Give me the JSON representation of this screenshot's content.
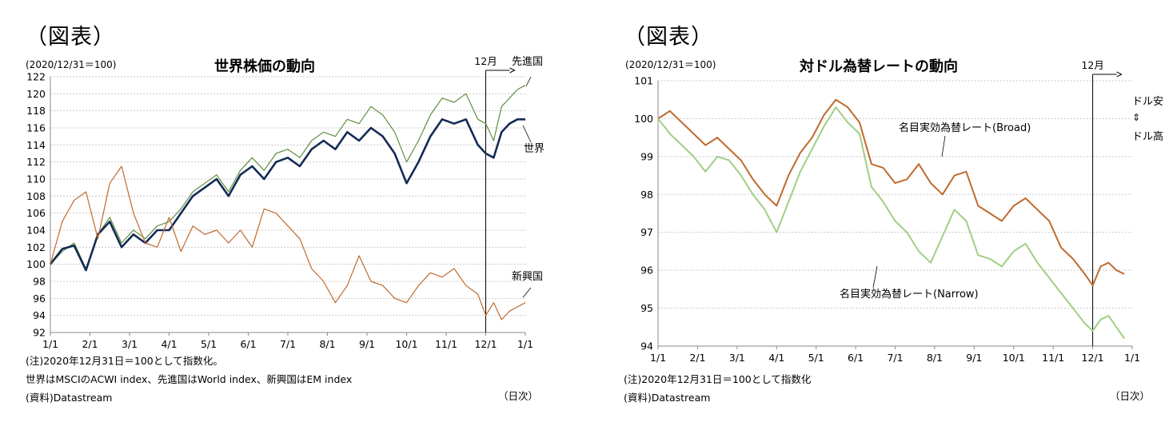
{
  "left": {
    "heading": "（図表）",
    "base_label": "(2020/12/31＝100)",
    "title": "世界株価の動向",
    "unit": "（日次）",
    "notes": [
      "(注)2020年12月31日＝100として指数化。",
      "世界はMSCIのACWI index、先進国はWorld index、新興国はEM index",
      "(資料)Datastream"
    ]
  },
  "right": {
    "heading": "（図表）",
    "base_label": "(2020/12/31＝100)",
    "title": "対ドル為替レートの動向",
    "unit": "（日次）",
    "notes": [
      "(注)2020年12月31日＝100として指数化",
      "(資料)Datastream"
    ]
  },
  "chart_data": [
    {
      "type": "line",
      "title": "世界株価の動向",
      "ylim": [
        92,
        122
      ],
      "yticks": [
        92,
        94,
        96,
        98,
        100,
        102,
        104,
        106,
        108,
        110,
        112,
        114,
        116,
        118,
        120,
        122
      ],
      "xticks": [
        "1/1",
        "2/1",
        "3/1",
        "4/1",
        "5/1",
        "6/1",
        "7/1",
        "8/1",
        "9/1",
        "10/1",
        "11/1",
        "12/1",
        "1/1"
      ],
      "grid": true,
      "marker": {
        "label": "12月",
        "x": 11
      },
      "series": [
        {
          "name": "先進国",
          "color": "#5f8f3e",
          "width": 1.2,
          "x": [
            0,
            0.3,
            0.6,
            0.9,
            1.2,
            1.5,
            1.8,
            2.1,
            2.4,
            2.7,
            3.0,
            3.3,
            3.6,
            3.9,
            4.2,
            4.5,
            4.8,
            5.1,
            5.4,
            5.7,
            6.0,
            6.3,
            6.6,
            6.9,
            7.2,
            7.5,
            7.8,
            8.1,
            8.4,
            8.7,
            9.0,
            9.3,
            9.6,
            9.9,
            10.2,
            10.5,
            10.8,
            11.0,
            11.2,
            11.4,
            11.6,
            11.8,
            12.0
          ],
          "y": [
            100,
            101.5,
            102.5,
            99.5,
            103.5,
            105.5,
            102.5,
            104.0,
            103.0,
            104.5,
            105.0,
            106.5,
            108.5,
            109.5,
            110.5,
            108.5,
            111.0,
            112.5,
            111.0,
            113.0,
            113.5,
            112.5,
            114.5,
            115.5,
            115.0,
            117.0,
            116.5,
            118.5,
            117.5,
            115.5,
            112.0,
            114.5,
            117.5,
            119.5,
            119.0,
            120.0,
            117.0,
            116.5,
            114.5,
            118.5,
            119.5,
            120.5,
            121.0
          ]
        },
        {
          "name": "世界",
          "color": "#142b55",
          "width": 2.6,
          "x": [
            0,
            0.3,
            0.6,
            0.9,
            1.2,
            1.5,
            1.8,
            2.1,
            2.4,
            2.7,
            3.0,
            3.3,
            3.6,
            3.9,
            4.2,
            4.5,
            4.8,
            5.1,
            5.4,
            5.7,
            6.0,
            6.3,
            6.6,
            6.9,
            7.2,
            7.5,
            7.8,
            8.1,
            8.4,
            8.7,
            9.0,
            9.3,
            9.6,
            9.9,
            10.2,
            10.5,
            10.8,
            11.0,
            11.2,
            11.4,
            11.6,
            11.8,
            12.0
          ],
          "y": [
            100,
            101.8,
            102.2,
            99.3,
            103.5,
            105.0,
            102.0,
            103.5,
            102.5,
            104.0,
            104.0,
            106.0,
            108.0,
            109.0,
            110.0,
            108.0,
            110.5,
            111.5,
            110.0,
            112.0,
            112.5,
            111.5,
            113.5,
            114.5,
            113.5,
            115.5,
            114.5,
            116.0,
            115.0,
            113.0,
            109.5,
            112.0,
            115.0,
            117.0,
            116.5,
            117.0,
            114.0,
            113.0,
            112.5,
            115.5,
            116.5,
            117.0,
            117.0
          ]
        },
        {
          "name": "新興国",
          "color": "#c06a2e",
          "width": 1.2,
          "x": [
            0,
            0.3,
            0.6,
            0.9,
            1.2,
            1.5,
            1.8,
            2.1,
            2.4,
            2.7,
            3.0,
            3.3,
            3.6,
            3.9,
            4.2,
            4.5,
            4.8,
            5.1,
            5.4,
            5.7,
            6.0,
            6.3,
            6.6,
            6.9,
            7.2,
            7.5,
            7.8,
            8.1,
            8.4,
            8.7,
            9.0,
            9.3,
            9.6,
            9.9,
            10.2,
            10.5,
            10.8,
            11.0,
            11.2,
            11.4,
            11.6,
            11.8,
            12.0
          ],
          "y": [
            100,
            105.0,
            107.5,
            108.5,
            103.0,
            109.5,
            111.5,
            106.0,
            102.5,
            102.0,
            105.5,
            101.5,
            104.5,
            103.5,
            104.0,
            102.5,
            104.0,
            102.0,
            106.5,
            106.0,
            104.5,
            103.0,
            99.5,
            98.0,
            95.5,
            97.5,
            101.0,
            98.0,
            97.5,
            96.0,
            95.5,
            97.5,
            99.0,
            98.5,
            99.5,
            97.5,
            96.5,
            94.0,
            95.5,
            93.5,
            94.5,
            95.0,
            95.5
          ]
        }
      ],
      "annotations": [
        "先進国",
        "世界",
        "新興国"
      ]
    },
    {
      "type": "line",
      "title": "対ドル為替レートの動向",
      "ylim": [
        94,
        101
      ],
      "yticks": [
        94,
        95,
        96,
        97,
        98,
        99,
        100,
        101
      ],
      "xticks": [
        "1/1",
        "2/1",
        "3/1",
        "4/1",
        "5/1",
        "6/1",
        "7/1",
        "8/1",
        "9/1",
        "10/1",
        "11/1",
        "12/1",
        "1/1"
      ],
      "grid": true,
      "marker": {
        "label": "12月",
        "x": 11
      },
      "side_labels": [
        "ドル安",
        "⇕",
        "ドル高"
      ],
      "series": [
        {
          "name": "名目実効為替レート(Broad)",
          "color": "#c06a2e",
          "width": 2.0,
          "x": [
            0,
            0.3,
            0.6,
            0.9,
            1.2,
            1.5,
            1.8,
            2.1,
            2.4,
            2.7,
            3.0,
            3.3,
            3.6,
            3.9,
            4.2,
            4.5,
            4.8,
            5.1,
            5.4,
            5.7,
            6.0,
            6.3,
            6.6,
            6.9,
            7.2,
            7.5,
            7.8,
            8.1,
            8.4,
            8.7,
            9.0,
            9.3,
            9.6,
            9.9,
            10.2,
            10.5,
            10.8,
            11.0,
            11.2,
            11.4,
            11.6,
            11.8
          ],
          "y": [
            100.0,
            100.2,
            99.9,
            99.6,
            99.3,
            99.5,
            99.2,
            98.9,
            98.4,
            98.0,
            97.7,
            98.5,
            99.1,
            99.5,
            100.1,
            100.5,
            100.3,
            99.9,
            98.8,
            98.7,
            98.3,
            98.4,
            98.8,
            98.3,
            98.0,
            98.5,
            98.6,
            97.7,
            97.5,
            97.3,
            97.7,
            97.9,
            97.6,
            97.3,
            96.6,
            96.3,
            95.9,
            95.6,
            96.1,
            96.2,
            96.0,
            95.9
          ]
        },
        {
          "name": "名目実効為替レート(Narrow)",
          "color": "#9fcf85",
          "width": 2.0,
          "x": [
            0,
            0.3,
            0.6,
            0.9,
            1.2,
            1.5,
            1.8,
            2.1,
            2.4,
            2.7,
            3.0,
            3.3,
            3.6,
            3.9,
            4.2,
            4.5,
            4.8,
            5.1,
            5.4,
            5.7,
            6.0,
            6.3,
            6.6,
            6.9,
            7.2,
            7.5,
            7.8,
            8.1,
            8.4,
            8.7,
            9.0,
            9.3,
            9.6,
            9.9,
            10.2,
            10.5,
            10.8,
            11.0,
            11.2,
            11.4,
            11.6,
            11.8
          ],
          "y": [
            100.0,
            99.6,
            99.3,
            99.0,
            98.6,
            99.0,
            98.9,
            98.5,
            98.0,
            97.6,
            97.0,
            97.8,
            98.6,
            99.2,
            99.8,
            100.3,
            99.9,
            99.6,
            98.2,
            97.8,
            97.3,
            97.0,
            96.5,
            96.2,
            96.9,
            97.6,
            97.3,
            96.4,
            96.3,
            96.1,
            96.5,
            96.7,
            96.2,
            95.8,
            95.4,
            95.0,
            94.6,
            94.4,
            94.7,
            94.8,
            94.5,
            94.2
          ]
        }
      ],
      "annotations": [
        "名目実効為替レート(Broad)",
        "名目実効為替レート(Narrow)"
      ]
    }
  ]
}
